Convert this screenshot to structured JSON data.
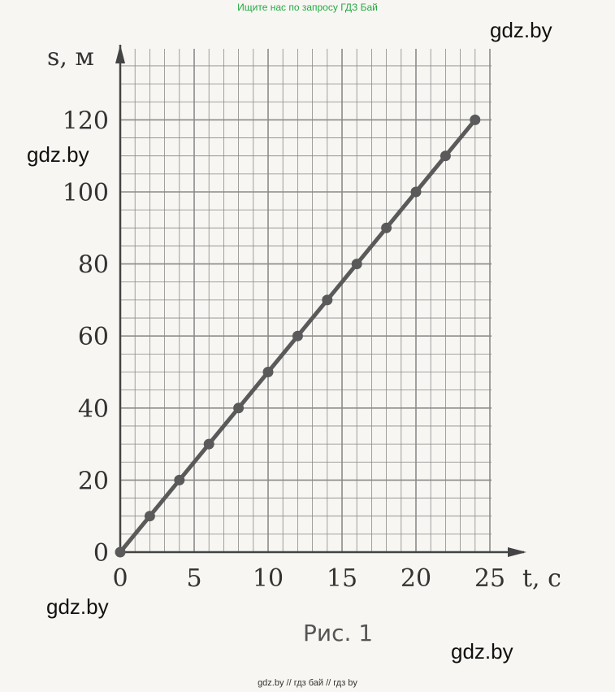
{
  "banner_top": "Ищите нас по запросу ГДЗ Бай",
  "banner_bottom": "gdz.by  //  гдз бай  //  гдз by",
  "watermarks": [
    "gdz.by",
    "gdz.by",
    "gdz.by",
    "gdz.by"
  ],
  "caption": "Рис. 1",
  "colors": {
    "line": "#5a5a5a",
    "grid": "#8a8a8a",
    "axis": "#444444"
  },
  "chart_data": {
    "type": "line",
    "xlabel": "t, с",
    "ylabel": "s, м",
    "xlim": [
      0,
      25
    ],
    "ylim": [
      0,
      120
    ],
    "xticks": [
      0,
      5,
      10,
      15,
      20,
      25
    ],
    "yticks": [
      0,
      20,
      40,
      60,
      80,
      100,
      120
    ],
    "grid": true,
    "legend": "none",
    "series": [
      {
        "x": [
          0,
          2,
          4,
          6,
          8,
          10,
          12,
          14,
          16,
          18,
          20,
          22,
          24
        ],
        "y": [
          0,
          10,
          20,
          30,
          40,
          50,
          60,
          70,
          80,
          90,
          100,
          110,
          120
        ]
      }
    ]
  }
}
